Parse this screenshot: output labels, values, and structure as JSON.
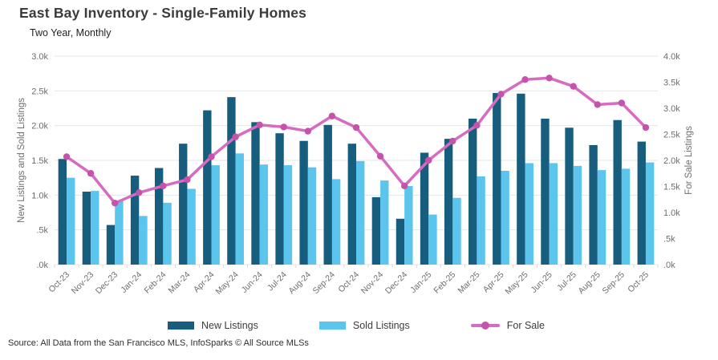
{
  "header": {
    "title": "East Bay Inventory - Single-Family Homes",
    "subtitle": "Two Year, Monthly"
  },
  "source_note": "Source: All Data from the San Francisco MLS, InfoSparks © All Source MLSs",
  "colors": {
    "new_listings": "#175e7e",
    "sold_listings": "#5cc5ee",
    "for_sale_line": "#d66bc2",
    "for_sale_marker": "#c653ab",
    "grid": "#e6e6e6",
    "tick": "#d9d9d9",
    "axis_text": "#6e6e6e"
  },
  "legend": {
    "items": [
      {
        "label": "New Listings",
        "type": "swatch",
        "color": "#175e7e"
      },
      {
        "label": "Sold Listings",
        "type": "swatch",
        "color": "#5cc5ee"
      },
      {
        "label": "For Sale",
        "type": "line",
        "color": "#d66bc2",
        "marker_color": "#c653ab"
      }
    ]
  },
  "chart_data": {
    "type": "bar",
    "subtype": "grouped bars with overlay line",
    "title": "East Bay Inventory - Single-Family Homes",
    "subtitle": "Two Year, Monthly",
    "categories": [
      "Oct-23",
      "Nov-23",
      "Dec-23",
      "Jan-24",
      "Feb-24",
      "Mar-24",
      "Apr-24",
      "May-24",
      "Jun-24",
      "Jul-24",
      "Aug-24",
      "Sep-24",
      "Oct-24",
      "Nov-24",
      "Dec-24",
      "Jan-25",
      "Feb-25",
      "Mar-25",
      "Apr-25",
      "May-25",
      "Jun-25",
      "Jul-25",
      "Aug-25",
      "Sep-25",
      "Oct-25"
    ],
    "series": [
      {
        "name": "New Listings",
        "type": "bar",
        "axis": "left",
        "color": "#175e7e",
        "values": [
          1520,
          1050,
          570,
          1280,
          1390,
          1740,
          2220,
          2410,
          2050,
          1890,
          1780,
          2010,
          1740,
          970,
          660,
          1610,
          1810,
          2100,
          2470,
          2460,
          2100,
          1970,
          1720,
          2080,
          1770
        ]
      },
      {
        "name": "Sold Listings",
        "type": "bar",
        "axis": "left",
        "color": "#5cc5ee",
        "values": [
          1250,
          1060,
          920,
          700,
          890,
          1090,
          1430,
          1600,
          1440,
          1430,
          1400,
          1230,
          1490,
          1210,
          1130,
          720,
          960,
          1270,
          1350,
          1460,
          1460,
          1420,
          1360,
          1380,
          1470
        ]
      },
      {
        "name": "For Sale",
        "type": "line",
        "axis": "right",
        "color": "#d66bc2",
        "marker_color": "#c653ab",
        "values": [
          2070,
          1750,
          1180,
          1380,
          1510,
          1630,
          2070,
          2450,
          2680,
          2640,
          2560,
          2850,
          2630,
          2080,
          1510,
          2000,
          2370,
          2670,
          3270,
          3550,
          3580,
          3420,
          3070,
          3100,
          2630
        ]
      }
    ],
    "left_axis": {
      "label": "New Listings and Sold Listings",
      "range": [
        0,
        3000
      ],
      "ticks": [
        ".0k",
        ".5k",
        "1.0k",
        "1.5k",
        "2.0k",
        "2.5k",
        "3.0k"
      ]
    },
    "right_axis": {
      "label": "For Sale Listings",
      "range": [
        0,
        4000
      ],
      "ticks": [
        ".0k",
        ".5k",
        "1.0k",
        "1.5k",
        "2.0k",
        "2.5k",
        "3.0k",
        "3.5k",
        "4.0k"
      ]
    },
    "grid": true,
    "legend_position": "bottom"
  }
}
